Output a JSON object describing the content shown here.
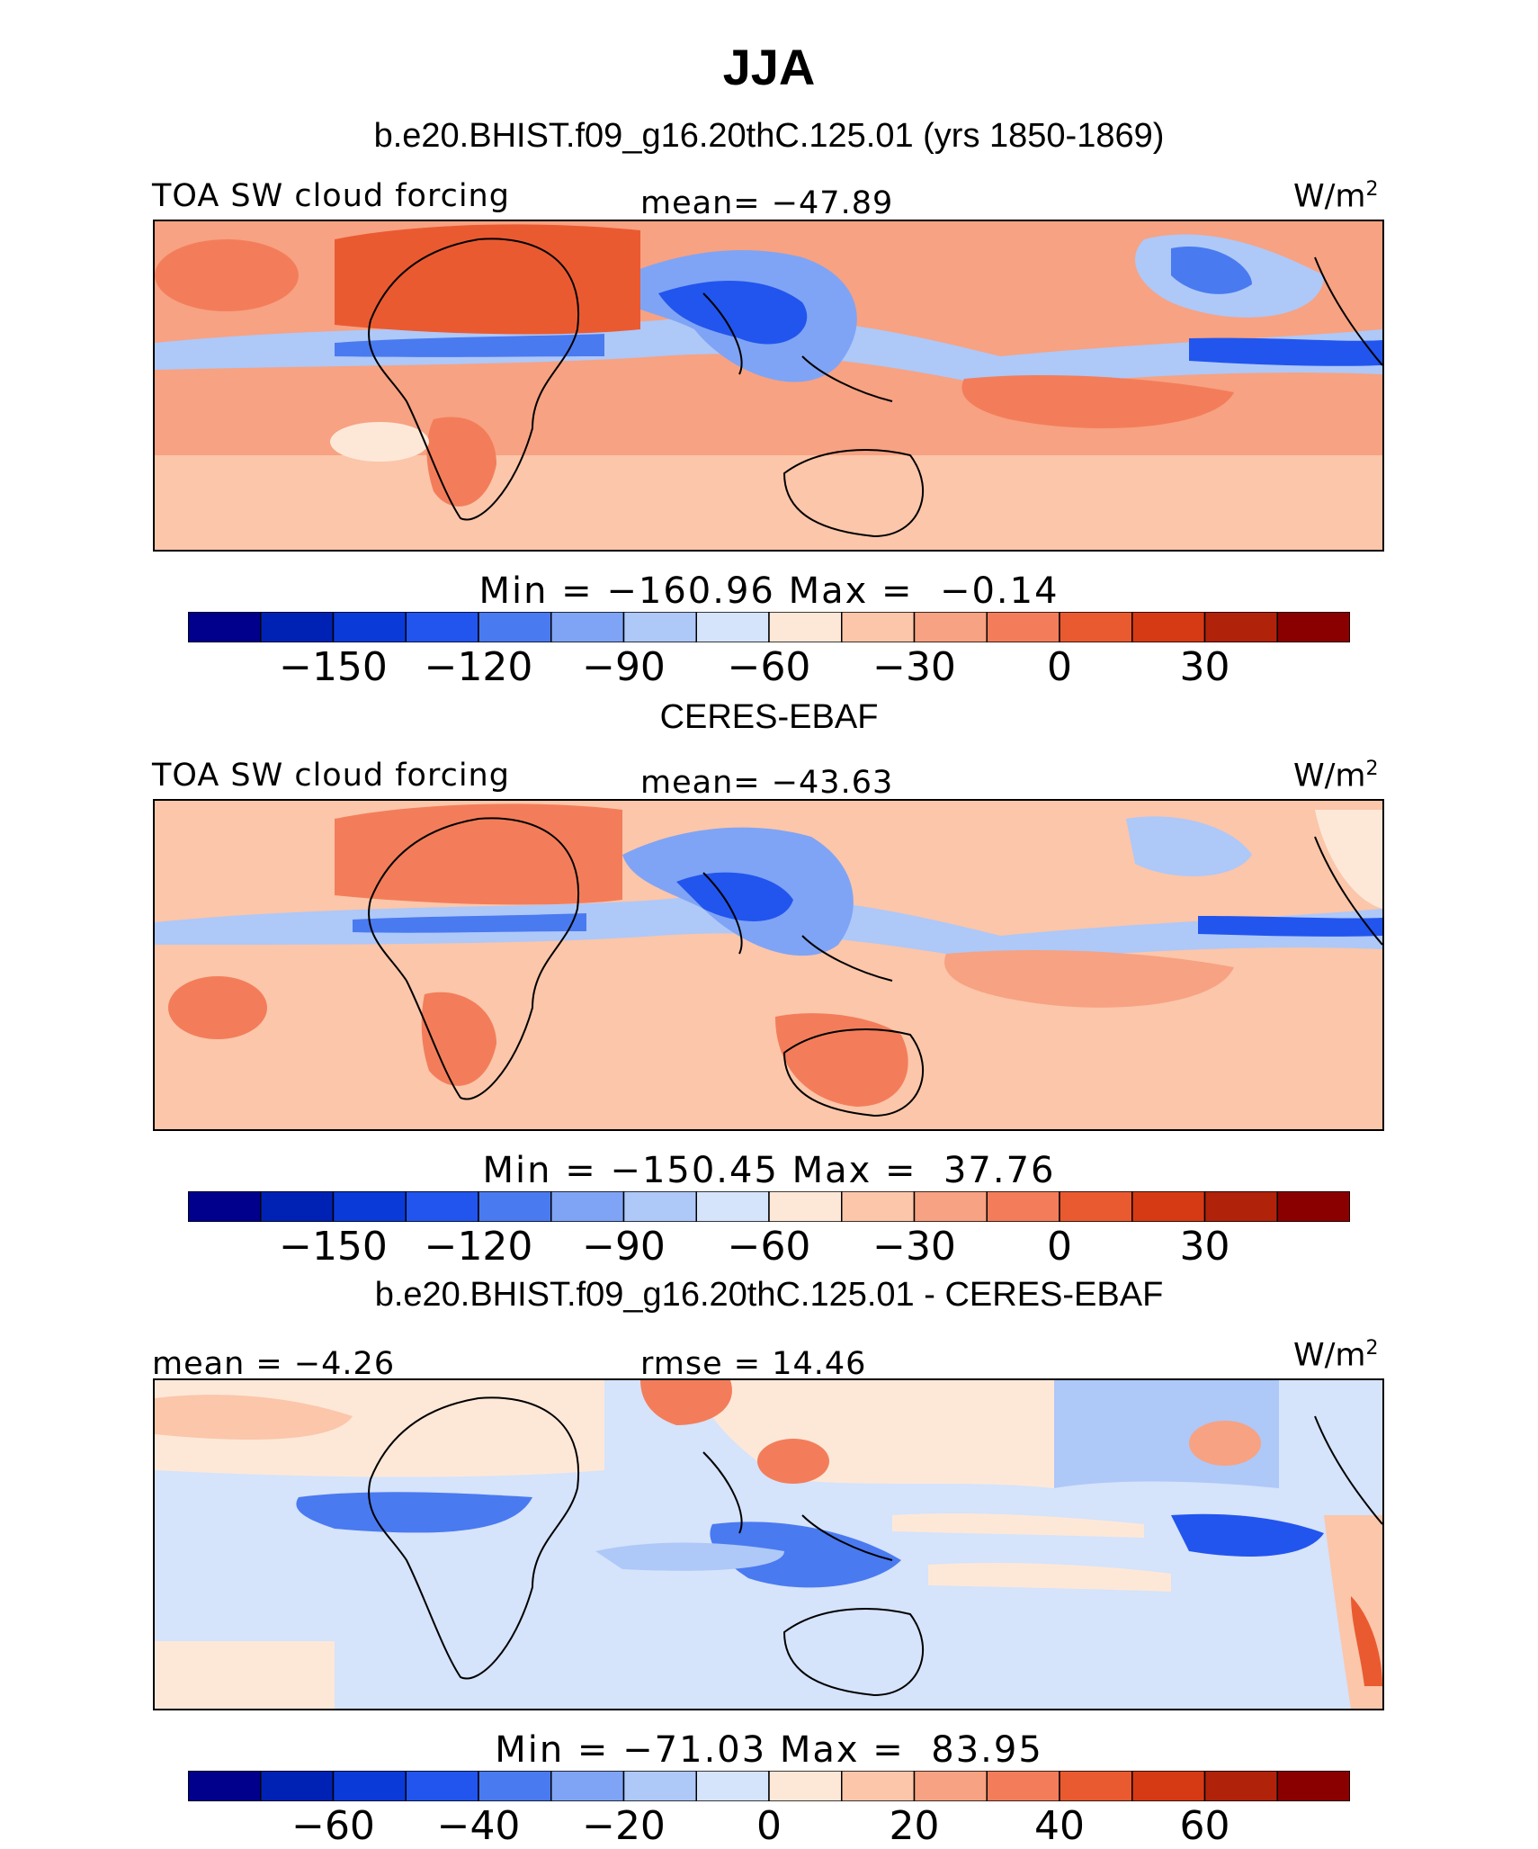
{
  "figure": {
    "title": "JJA",
    "units": "W/m",
    "units_exp": "2",
    "colors": [
      "#00008c",
      "#0022b4",
      "#0a3ad8",
      "#2255ee",
      "#4a7af0",
      "#7fa4f5",
      "#aec8f8",
      "#d5e3fb",
      "#fde8d8",
      "#fbc6aa",
      "#f7a282",
      "#f37d5a",
      "#ea5a31",
      "#d63a14",
      "#b0220a",
      "#8a0000"
    ]
  },
  "panels": [
    {
      "id": "model",
      "heading": "b.e20.BHIST.f09_g16.20thC.125.01 (yrs 1850-1869)",
      "left_label": "TOA SW cloud forcing",
      "center_label": "mean= −47.89",
      "minmax": "Min = −160.96 Max =  −0.14",
      "ticks": [
        "−150",
        "−120",
        "−90",
        "−60",
        "−30",
        "0",
        "30"
      ],
      "tick_positions": [
        2,
        4,
        6,
        8,
        10,
        12,
        14
      ]
    },
    {
      "id": "obs",
      "heading": "CERES-EBAF",
      "left_label": "TOA SW cloud forcing",
      "center_label": "mean= −43.63",
      "minmax": "Min = −150.45 Max =  37.76",
      "ticks": [
        "−150",
        "−120",
        "−90",
        "−60",
        "−30",
        "0",
        "30"
      ],
      "tick_positions": [
        2,
        4,
        6,
        8,
        10,
        12,
        14
      ]
    },
    {
      "id": "diff",
      "heading": "b.e20.BHIST.f09_g16.20thC.125.01 - CERES-EBAF",
      "left_label": "mean =  −4.26",
      "center_label": "rmse =  14.46",
      "minmax": "Min = −71.03 Max =  83.95",
      "ticks": [
        "−60",
        "−40",
        "−20",
        "0",
        "20",
        "40",
        "60"
      ],
      "tick_positions": [
        2,
        4,
        6,
        8,
        10,
        12,
        14
      ]
    }
  ]
}
